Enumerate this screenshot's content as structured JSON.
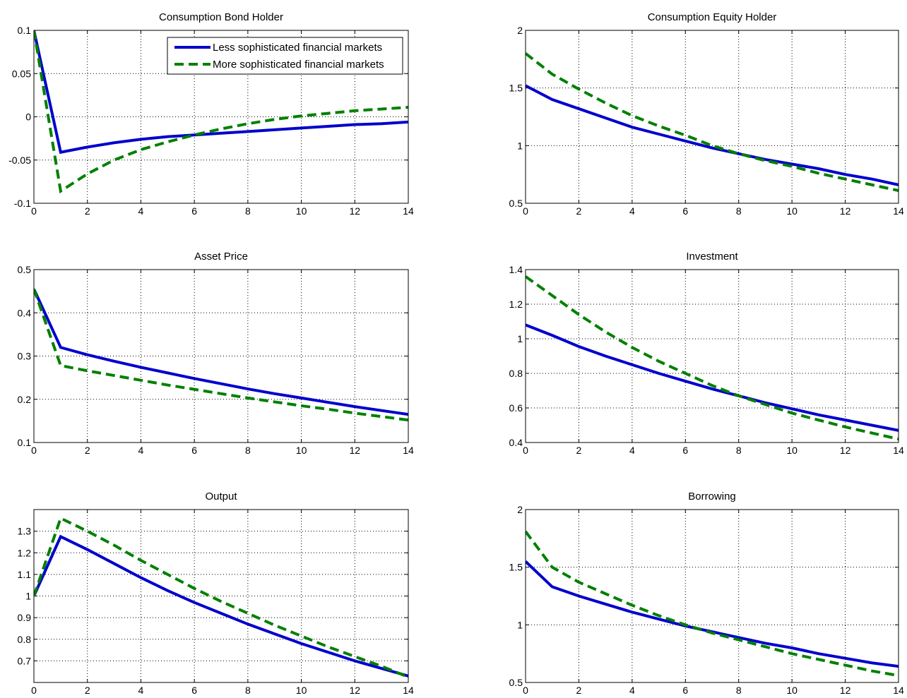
{
  "figure": {
    "legend": {
      "placement": "top-right of first panel",
      "entries": [
        {
          "series": "Less sophisticated financial markets",
          "color": "#0000cc",
          "style": "solid"
        },
        {
          "series": "More sophisticated financial markets",
          "color": "#008000",
          "style": "dashed"
        }
      ]
    }
  },
  "chart_data": [
    {
      "type": "line",
      "title": "Consumption Bond Holder",
      "xlim": [
        0,
        14
      ],
      "ylim": [
        -0.1,
        0.1
      ],
      "xticks": [
        0,
        2,
        4,
        6,
        8,
        10,
        12,
        14
      ],
      "xtick_labels": [
        "0",
        "2",
        "4",
        "6",
        "8",
        "10",
        "12",
        "14"
      ],
      "yticks": [
        -0.1,
        -0.05,
        0,
        0.05,
        0.1
      ],
      "ytick_labels": [
        "-0.1",
        "-0.05",
        "0",
        "0.05",
        "0.1"
      ],
      "grid": true,
      "x": [
        0,
        1,
        2,
        3,
        4,
        5,
        6,
        7,
        8,
        9,
        10,
        11,
        12,
        13,
        14
      ],
      "series": [
        {
          "name": "Less sophisticated financial markets",
          "color": "#0000cc",
          "style": "solid",
          "values": [
            0.1,
            -0.041,
            -0.035,
            -0.03,
            -0.026,
            -0.023,
            -0.021,
            -0.019,
            -0.017,
            -0.015,
            -0.013,
            -0.011,
            -0.009,
            -0.008,
            -0.006
          ]
        },
        {
          "name": "More sophisticated financial markets",
          "color": "#008000",
          "style": "dashed",
          "values": [
            0.1,
            -0.086,
            -0.066,
            -0.05,
            -0.038,
            -0.029,
            -0.021,
            -0.014,
            -0.008,
            -0.003,
            0.001,
            0.004,
            0.007,
            0.009,
            0.011
          ]
        }
      ]
    },
    {
      "type": "line",
      "title": "Consumption Equity Holder",
      "xlim": [
        0,
        14
      ],
      "ylim": [
        0.5,
        2
      ],
      "xticks": [
        0,
        2,
        4,
        6,
        8,
        10,
        12,
        14
      ],
      "xtick_labels": [
        "0",
        "2",
        "4",
        "6",
        "8",
        "10",
        "12",
        "14"
      ],
      "yticks": [
        0.5,
        1,
        1.5,
        2
      ],
      "ytick_labels": [
        "0.5",
        "1",
        "1.5",
        "2"
      ],
      "grid": true,
      "x": [
        0,
        1,
        2,
        3,
        4,
        5,
        6,
        7,
        8,
        9,
        10,
        11,
        12,
        13,
        14
      ],
      "series": [
        {
          "name": "Less sophisticated financial markets",
          "color": "#0000cc",
          "style": "solid",
          "values": [
            1.52,
            1.4,
            1.32,
            1.24,
            1.16,
            1.1,
            1.04,
            0.98,
            0.93,
            0.88,
            0.84,
            0.8,
            0.75,
            0.71,
            0.66
          ]
        },
        {
          "name": "More sophisticated financial markets",
          "color": "#008000",
          "style": "dashed",
          "values": [
            1.8,
            1.62,
            1.49,
            1.37,
            1.26,
            1.17,
            1.09,
            1.0,
            0.93,
            0.87,
            0.82,
            0.76,
            0.71,
            0.66,
            0.61
          ]
        }
      ]
    },
    {
      "type": "line",
      "title": "Asset Price",
      "xlim": [
        0,
        14
      ],
      "ylim": [
        0.1,
        0.5
      ],
      "xticks": [
        0,
        2,
        4,
        6,
        8,
        10,
        12,
        14
      ],
      "xtick_labels": [
        "0",
        "2",
        "4",
        "6",
        "8",
        "10",
        "12",
        "14"
      ],
      "yticks": [
        0.1,
        0.2,
        0.3,
        0.4,
        0.5
      ],
      "ytick_labels": [
        "0.1",
        "0.2",
        "0.3",
        "0.4",
        "0.5"
      ],
      "grid": true,
      "x": [
        0,
        1,
        2,
        3,
        4,
        5,
        6,
        7,
        8,
        9,
        10,
        11,
        12,
        13,
        14
      ],
      "series": [
        {
          "name": "Less sophisticated financial markets",
          "color": "#0000cc",
          "style": "solid",
          "values": [
            0.455,
            0.32,
            0.303,
            0.288,
            0.274,
            0.261,
            0.248,
            0.236,
            0.224,
            0.213,
            0.203,
            0.193,
            0.183,
            0.174,
            0.165
          ]
        },
        {
          "name": "More sophisticated financial markets",
          "color": "#008000",
          "style": "dashed",
          "values": [
            0.455,
            0.278,
            0.266,
            0.255,
            0.244,
            0.233,
            0.223,
            0.213,
            0.203,
            0.194,
            0.185,
            0.177,
            0.168,
            0.16,
            0.152
          ]
        }
      ]
    },
    {
      "type": "line",
      "title": "Investment",
      "xlim": [
        0,
        14
      ],
      "ylim": [
        0.4,
        1.4
      ],
      "xticks": [
        0,
        2,
        4,
        6,
        8,
        10,
        12,
        14
      ],
      "xtick_labels": [
        "0",
        "2",
        "4",
        "6",
        "8",
        "10",
        "12",
        "14"
      ],
      "yticks": [
        0.4,
        0.6,
        0.8,
        1,
        1.2,
        1.4
      ],
      "ytick_labels": [
        "0.4",
        "0.6",
        "0.8",
        "1",
        "1.2",
        "1.4"
      ],
      "grid": true,
      "x": [
        0,
        1,
        2,
        3,
        4,
        5,
        6,
        7,
        8,
        9,
        10,
        11,
        12,
        13,
        14
      ],
      "series": [
        {
          "name": "Less sophisticated financial markets",
          "color": "#0000cc",
          "style": "solid",
          "values": [
            1.08,
            1.02,
            0.955,
            0.9,
            0.85,
            0.8,
            0.755,
            0.71,
            0.67,
            0.63,
            0.595,
            0.56,
            0.53,
            0.5,
            0.47
          ]
        },
        {
          "name": "More sophisticated financial markets",
          "color": "#008000",
          "style": "dashed",
          "values": [
            1.36,
            1.25,
            1.14,
            1.04,
            0.95,
            0.87,
            0.8,
            0.73,
            0.67,
            0.62,
            0.57,
            0.53,
            0.49,
            0.455,
            0.42
          ]
        }
      ]
    },
    {
      "type": "line",
      "title": "Output",
      "xlim": [
        0,
        14
      ],
      "ylim": [
        0.6,
        1.4
      ],
      "xticks": [
        0,
        2,
        4,
        6,
        8,
        10,
        12,
        14
      ],
      "xtick_labels": [
        "0",
        "2",
        "4",
        "6",
        "8",
        "10",
        "12",
        "14"
      ],
      "yticks": [
        0.7,
        0.8,
        0.9,
        1,
        1.1,
        1.2,
        1.3
      ],
      "ytick_labels": [
        "0.7",
        "0.8",
        "0.9",
        "1",
        "1.1",
        "1.2",
        "1.3"
      ],
      "grid": true,
      "x": [
        0,
        1,
        2,
        3,
        4,
        5,
        6,
        7,
        8,
        9,
        10,
        11,
        12,
        13,
        14
      ],
      "series": [
        {
          "name": "Less sophisticated financial markets",
          "color": "#0000cc",
          "style": "solid",
          "values": [
            1.0,
            1.275,
            1.215,
            1.15,
            1.085,
            1.025,
            0.97,
            0.92,
            0.87,
            0.825,
            0.78,
            0.74,
            0.7,
            0.665,
            0.63
          ]
        },
        {
          "name": "More sophisticated financial markets",
          "color": "#008000",
          "style": "dashed",
          "values": [
            1.0,
            1.36,
            1.3,
            1.235,
            1.165,
            1.1,
            1.035,
            0.975,
            0.92,
            0.865,
            0.815,
            0.765,
            0.72,
            0.675,
            0.625
          ]
        }
      ]
    },
    {
      "type": "line",
      "title": "Borrowing",
      "xlim": [
        0,
        14
      ],
      "ylim": [
        0.5,
        2
      ],
      "xticks": [
        0,
        2,
        4,
        6,
        8,
        10,
        12,
        14
      ],
      "xtick_labels": [
        "0",
        "2",
        "4",
        "6",
        "8",
        "10",
        "12",
        "14"
      ],
      "yticks": [
        0.5,
        1,
        1.5,
        2
      ],
      "ytick_labels": [
        "0.5",
        "1",
        "1.5",
        "2"
      ],
      "grid": true,
      "x": [
        0,
        1,
        2,
        3,
        4,
        5,
        6,
        7,
        8,
        9,
        10,
        11,
        12,
        13,
        14
      ],
      "series": [
        {
          "name": "Less sophisticated financial markets",
          "color": "#0000cc",
          "style": "solid",
          "values": [
            1.55,
            1.33,
            1.25,
            1.18,
            1.11,
            1.05,
            0.99,
            0.94,
            0.89,
            0.84,
            0.8,
            0.75,
            0.71,
            0.67,
            0.64
          ]
        },
        {
          "name": "More sophisticated financial markets",
          "color": "#008000",
          "style": "dashed",
          "values": [
            1.81,
            1.5,
            1.37,
            1.27,
            1.17,
            1.08,
            1.0,
            0.93,
            0.87,
            0.81,
            0.75,
            0.7,
            0.65,
            0.6,
            0.56
          ]
        }
      ]
    }
  ]
}
